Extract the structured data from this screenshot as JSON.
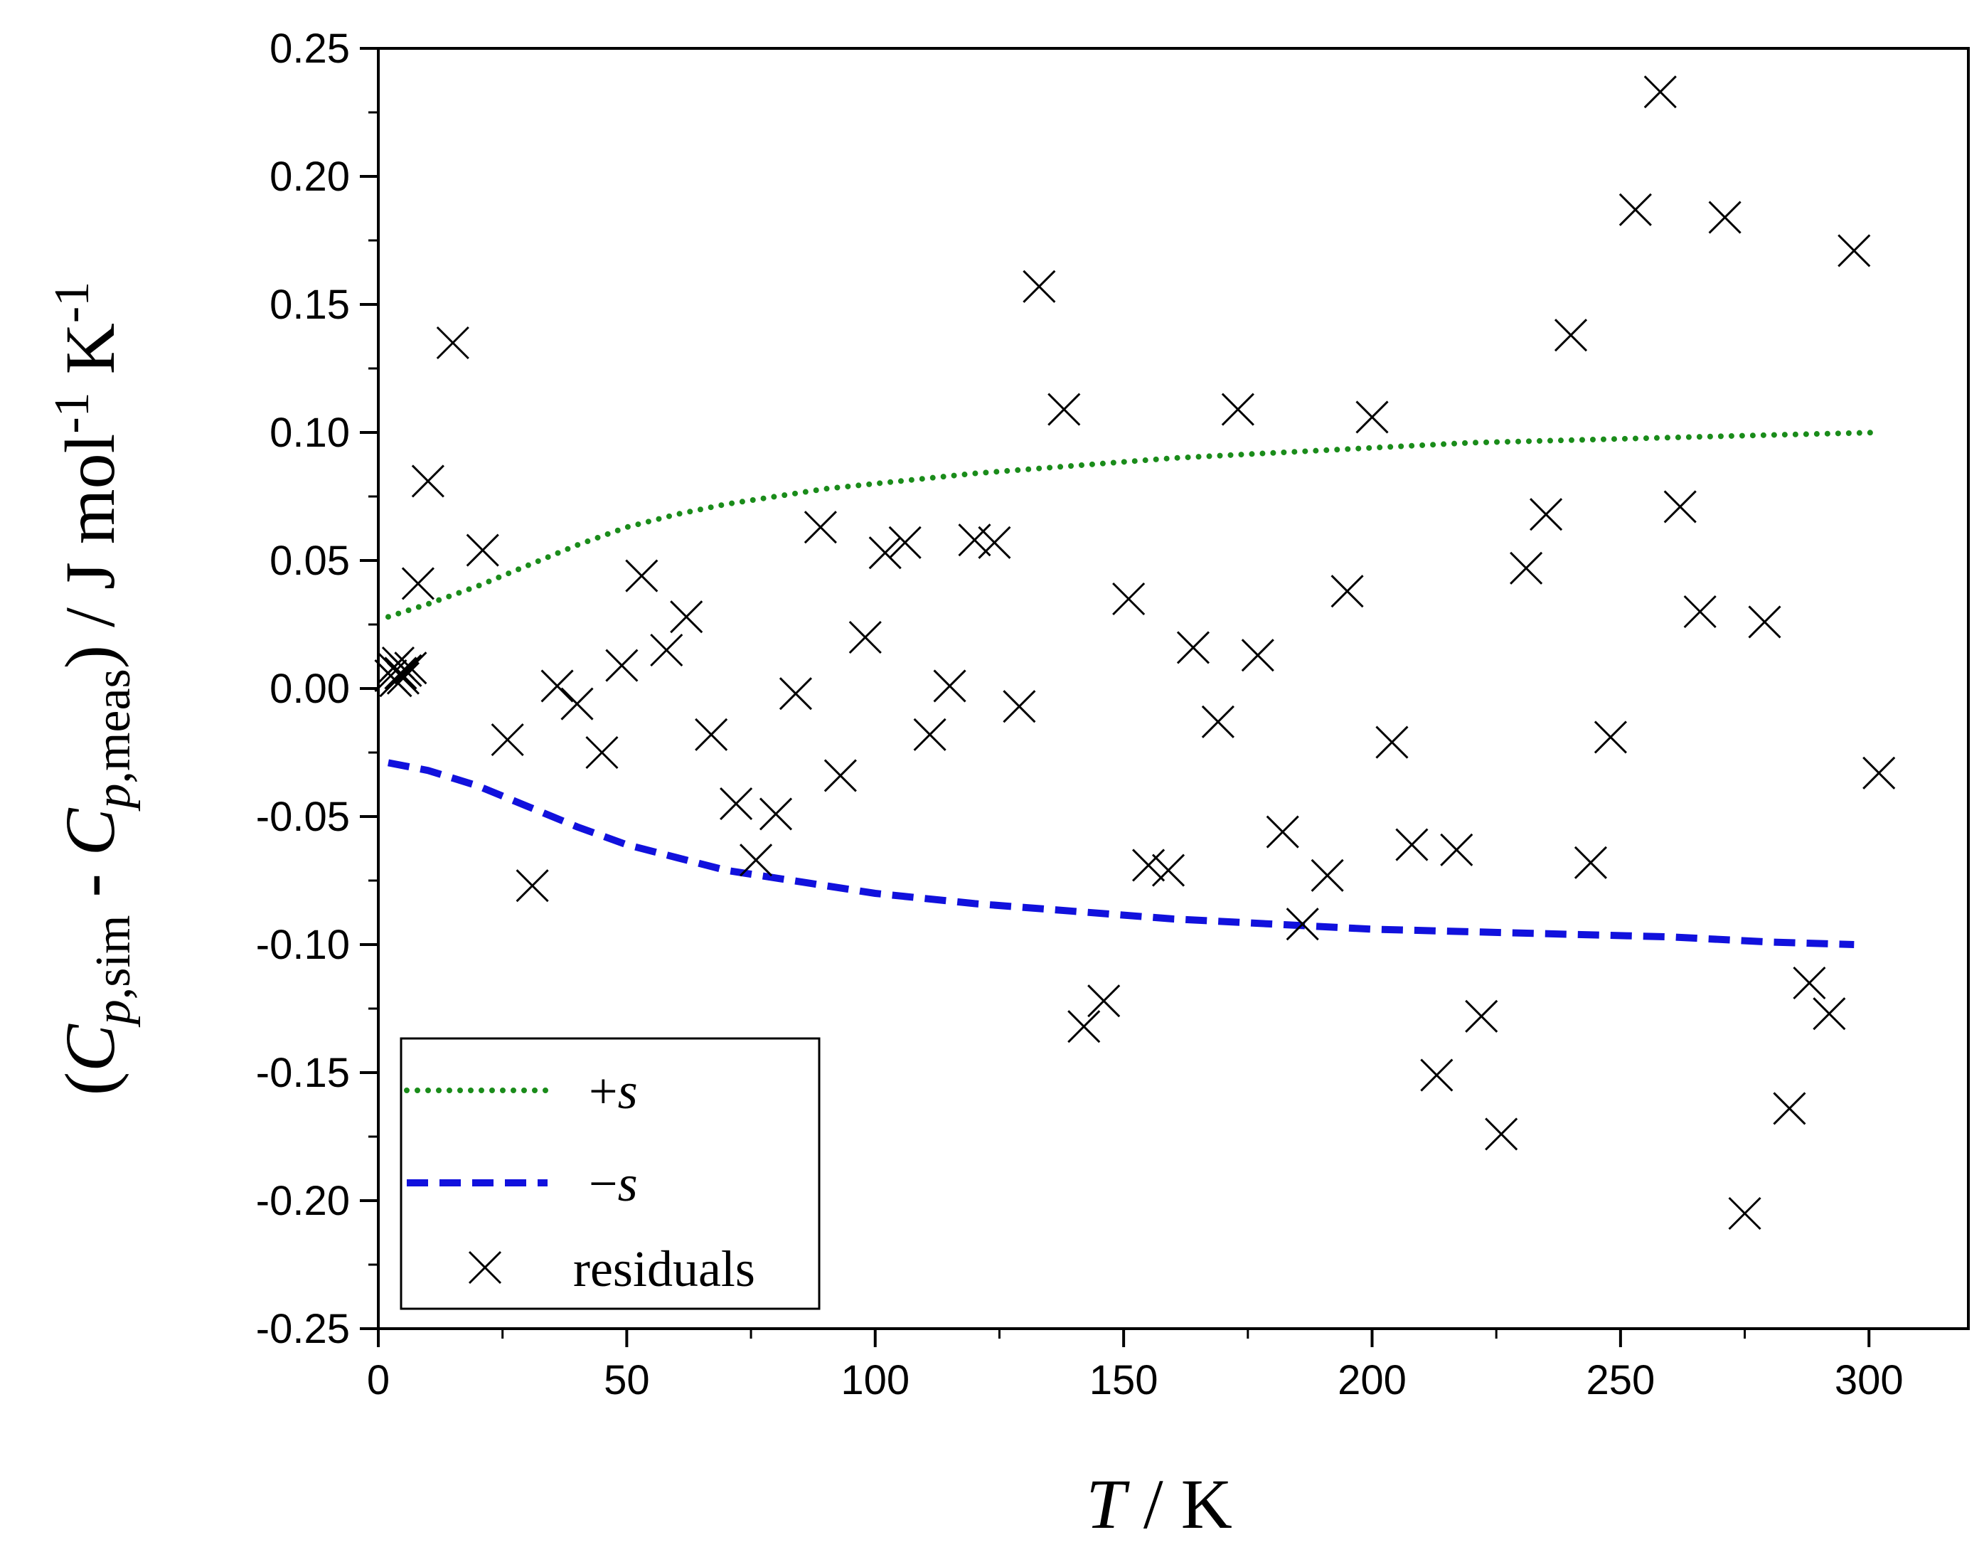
{
  "chart_data": {
    "type": "scatter",
    "title": "",
    "xlabel": {
      "italic": "T",
      "rest": " / K"
    },
    "ylabel": {
      "open": "(",
      "term1_sym": "C",
      "term1_sub_italic": "p",
      "term1_sub_rest": ",sim",
      "minus": " - ",
      "term2_sym": "C",
      "term2_sub_italic": "p",
      "term2_sub_rest": ",meas",
      "close": ")",
      "units": " / J mol",
      "units_sup1": "-1",
      "units_k": " K",
      "units_sup2": "-1"
    },
    "xlim": [
      0,
      320
    ],
    "ylim": [
      -0.25,
      0.25
    ],
    "xticks": [
      0,
      50,
      100,
      150,
      200,
      250,
      300
    ],
    "xtick_labels": [
      "0",
      "50",
      "100",
      "150",
      "200",
      "250",
      "300"
    ],
    "yticks": [
      -0.25,
      -0.2,
      -0.15,
      -0.1,
      -0.05,
      0,
      0.05,
      0.1,
      0.15,
      0.2,
      0.25
    ],
    "ytick_labels": [
      "-0.25",
      "-0.20",
      "-0.15",
      "-0.10",
      "-0.05",
      "0.00",
      "0.05",
      "0.10",
      "0.15",
      "0.20",
      "0.25"
    ],
    "legend_position": "bottom-left",
    "grid": false,
    "series": [
      {
        "name": "+s",
        "legend_sign": "+",
        "legend_var": "s",
        "style": "dotted",
        "color": "#1a8c1a",
        "x": [
          2,
          10,
          20,
          30,
          40,
          50,
          60,
          70,
          80,
          90,
          100,
          120,
          140,
          160,
          180,
          200,
          220,
          240,
          260,
          280,
          302
        ],
        "y": [
          0.028,
          0.033,
          0.04,
          0.048,
          0.056,
          0.063,
          0.068,
          0.072,
          0.075,
          0.078,
          0.08,
          0.084,
          0.087,
          0.09,
          0.092,
          0.094,
          0.096,
          0.097,
          0.098,
          0.099,
          0.1
        ]
      },
      {
        "name": "−s",
        "legend_sign": "−",
        "legend_var": "s",
        "style": "dashed",
        "color": "#1111dd",
        "x": [
          2,
          10,
          20,
          30,
          40,
          50,
          60,
          70,
          80,
          90,
          100,
          120,
          140,
          160,
          180,
          200,
          220,
          240,
          260,
          280,
          297
        ],
        "y": [
          -0.029,
          -0.032,
          -0.038,
          -0.046,
          -0.054,
          -0.061,
          -0.066,
          -0.071,
          -0.074,
          -0.077,
          -0.08,
          -0.084,
          -0.087,
          -0.09,
          -0.092,
          -0.094,
          -0.095,
          -0.096,
          -0.097,
          -0.099,
          -0.1
        ]
      },
      {
        "name": "residuals",
        "style": "markers",
        "marker": "x",
        "color": "#000000",
        "x": [
          2.5,
          3,
          3.5,
          4,
          4.5,
          5,
          5.5,
          6.5,
          8,
          10,
          15,
          21,
          26,
          31,
          36,
          40,
          45,
          49,
          53,
          58,
          62,
          67,
          72,
          76,
          80,
          84,
          89,
          93,
          98,
          102,
          106,
          111,
          115,
          120,
          124,
          129,
          133,
          138,
          142,
          146,
          151,
          155,
          159,
          164,
          169,
          173,
          177,
          182,
          186,
          191,
          195,
          200,
          204,
          208,
          213,
          217,
          222,
          226,
          231,
          235,
          240,
          244,
          248,
          253,
          258,
          262,
          266,
          271,
          275,
          279,
          284,
          288,
          292,
          297,
          302
        ],
        "y": [
          0.005,
          0.008,
          0.003,
          0.01,
          0.006,
          0.004,
          0.007,
          0.008,
          0.041,
          0.081,
          0.135,
          0.054,
          -0.02,
          -0.077,
          0.001,
          -0.006,
          -0.025,
          0.009,
          0.044,
          0.015,
          0.028,
          -0.018,
          -0.045,
          -0.067,
          -0.049,
          -0.002,
          0.063,
          -0.034,
          0.02,
          0.053,
          0.057,
          -0.018,
          0.001,
          0.058,
          0.057,
          -0.007,
          0.157,
          0.109,
          -0.132,
          -0.122,
          0.035,
          -0.069,
          -0.071,
          0.016,
          -0.013,
          0.109,
          0.013,
          -0.056,
          -0.092,
          -0.073,
          0.038,
          0.106,
          -0.021,
          -0.061,
          -0.151,
          -0.063,
          -0.128,
          -0.174,
          0.047,
          0.068,
          0.138,
          -0.068,
          -0.019,
          0.187,
          0.233,
          0.071,
          0.03,
          0.184,
          -0.205,
          0.026,
          -0.164,
          -0.115,
          -0.127,
          0.171,
          -0.033
        ]
      }
    ]
  }
}
